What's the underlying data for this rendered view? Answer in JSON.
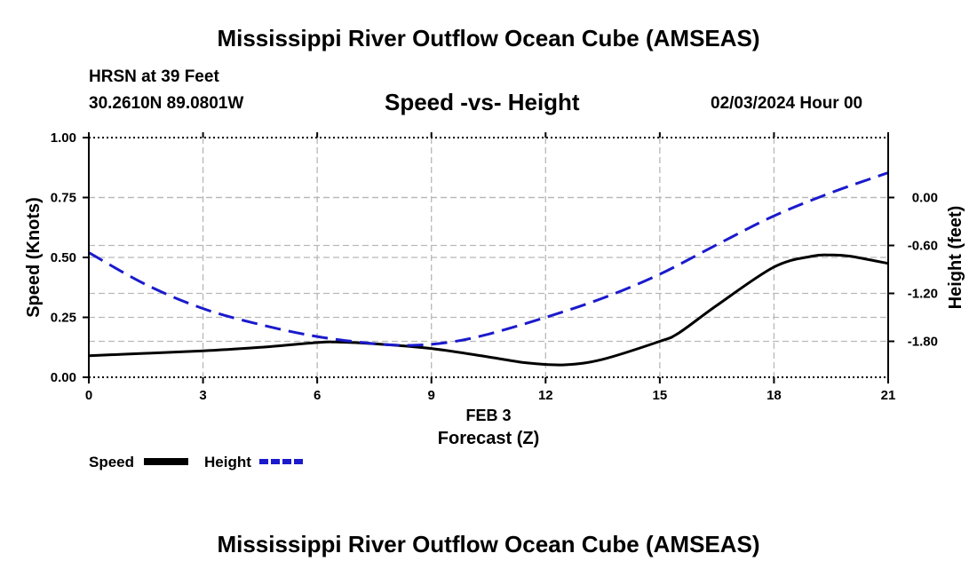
{
  "page": {
    "title": "Mississippi River Outflow Ocean Cube (AMSEAS)",
    "footer_title": "Mississippi River Outflow Ocean Cube (AMSEAS)",
    "station": "HRSN at 39 Feet",
    "coords": "30.2610N  89.0801W",
    "date": "02/03/2024 Hour 00"
  },
  "chart_data": {
    "type": "line",
    "title": "Speed -vs- Height",
    "xlabel": "Forecast (Z)",
    "xlabel_date": "FEB 3",
    "ylabel": "Speed (Knots)",
    "y2label": "Height (feet)",
    "xlim": [
      0,
      21
    ],
    "ylim": [
      0,
      1
    ],
    "y2lim": [
      -2.25,
      0.75
    ],
    "x_ticks": [
      "0",
      "3",
      "6",
      "9",
      "12",
      "15",
      "18",
      "21"
    ],
    "y_ticks": [
      "0.00",
      "0.25",
      "0.50",
      "0.75",
      "1.00"
    ],
    "y2_ticks": [
      "0.00",
      "-0.60",
      "-1.20",
      "-1.80"
    ],
    "grid": true,
    "legend_position": "bottom-left",
    "series": [
      {
        "name": "Speed",
        "axis": "left",
        "color": "#000000",
        "dash": "solid",
        "x": [
          0,
          1.5,
          3,
          4.5,
          6,
          6.5,
          7.5,
          9,
          10.5,
          11.5,
          12.5,
          13.5,
          15,
          15.5,
          16.5,
          18,
          19,
          19.5,
          20,
          21
        ],
        "values": [
          0.09,
          0.1,
          0.11,
          0.125,
          0.145,
          0.147,
          0.14,
          0.12,
          0.085,
          0.06,
          0.052,
          0.075,
          0.15,
          0.185,
          0.3,
          0.46,
          0.505,
          0.51,
          0.505,
          0.475
        ]
      },
      {
        "name": "Height",
        "axis": "right",
        "color": "#1a1acc",
        "dash": "dashed",
        "x": [
          0,
          1.5,
          3,
          4.5,
          6,
          7.5,
          8.5,
          9.5,
          10.5,
          12,
          13.5,
          15,
          16.5,
          18,
          19.5,
          21
        ],
        "values": [
          -0.69,
          -1.09,
          -1.39,
          -1.59,
          -1.74,
          -1.83,
          -1.85,
          -1.81,
          -1.71,
          -1.5,
          -1.26,
          -0.96,
          -0.59,
          -0.23,
          0.06,
          0.31
        ]
      }
    ]
  }
}
